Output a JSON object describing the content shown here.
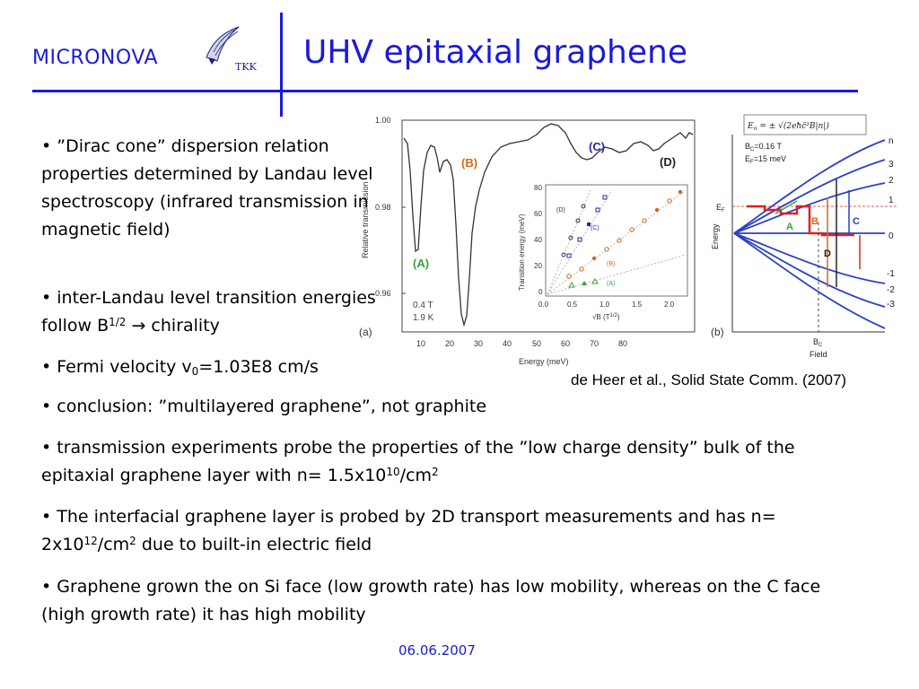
{
  "header": {
    "logo_text": "MICRONOVA",
    "logo_sub": "TKK",
    "title": "UHV epitaxial graphene"
  },
  "bullets": {
    "b1": "• ”Dirac cone” dispersion relation properties determined by Landau level spectroscopy (infrared transmission in magnetic field)",
    "b2_pre": "• inter-Landau level transition energies follow B",
    "b2_sup": "1/2",
    "b2_post": " → chirality",
    "b3_pre": "• Fermi velocity v",
    "b3_sub": "0",
    "b3_post": "=1.03E8 cm/s",
    "b4": "• conclusion: ”multilayered graphene”, not graphite",
    "b5_pre": "• transmission experiments probe the properties of the ”low charge density” bulk of the epitaxial graphene layer with n= 1.5x10",
    "b5_sup1": "10",
    "b5_mid": "/cm",
    "b5_sup2": "2",
    "b6_pre": "• The interfacial graphene layer is probed by 2D transport measurements and has n= 2x10",
    "b6_sup1": "12",
    "b6_mid": "/cm",
    "b6_sup2": "2",
    "b6_post": " due to built-in electric field",
    "b7": "• Graphene grown the on Si face (low growth rate) has low mobility, whereas on the C face (high growth rate) it has high mobility"
  },
  "figure": {
    "panel_a": {
      "ylabel": "Relative transmission",
      "xlabel": "Energy (meV)",
      "yticks": [
        "1.00",
        "0.98",
        "0.96"
      ],
      "xticks": [
        "10",
        "20",
        "30",
        "40",
        "50",
        "60",
        "70",
        "80"
      ],
      "labels": {
        "A": "(A)",
        "B": "(B)",
        "C": "(C)",
        "D": "(D)"
      },
      "conditions": [
        "0.4 T",
        "1.9 K"
      ],
      "panel_tag": "(a)",
      "inset": {
        "ylabel": "Transition energy (meV)",
        "xlabel": "√B (T",
        "xlabel_sup": "1/2",
        "xlabel_end": ")",
        "yticks": [
          "0",
          "20",
          "40",
          "60",
          "80"
        ],
        "xticks": [
          "0.0",
          "0.5",
          "1.0",
          "1.5",
          "2.0"
        ],
        "series_labels": [
          "(D)",
          "(C)",
          "(B)",
          "(A)"
        ]
      }
    },
    "panel_b": {
      "formula": "E = ± √(2eħc̃²B|n|)",
      "formula_lhs": "E",
      "formula_sub": "n",
      "formula_rhs": " = ± √(2eħc̃²B|n|)",
      "bc_text": "B",
      "bc_sub": "C",
      "bc_val": "=0.16 T",
      "ef_text": "E",
      "ef_sub": "F",
      "ef_val": "=15 meV",
      "n_label": "n",
      "levels": [
        "3",
        "2",
        "1",
        "0",
        "-1",
        "-2",
        "-3"
      ],
      "ylabel": "Energy",
      "ef_label": "E",
      "ef_label_sub": "F",
      "transitions": {
        "A": "A",
        "B": "B",
        "C": "C",
        "D": "D"
      },
      "xaxis_bc": "B",
      "xaxis_bc_sub": "C",
      "xlabel": "Field",
      "panel_tag": "(b)"
    },
    "colors": {
      "orange": "#d2691e",
      "green": "#3aa03a",
      "blue": "#2a2aa0",
      "red": "#e02020",
      "level_blue": "#2a3fc8"
    }
  },
  "citation": "de Heer et al., Solid State Comm. (2007)",
  "footer": {
    "date": "06.06.2007"
  }
}
